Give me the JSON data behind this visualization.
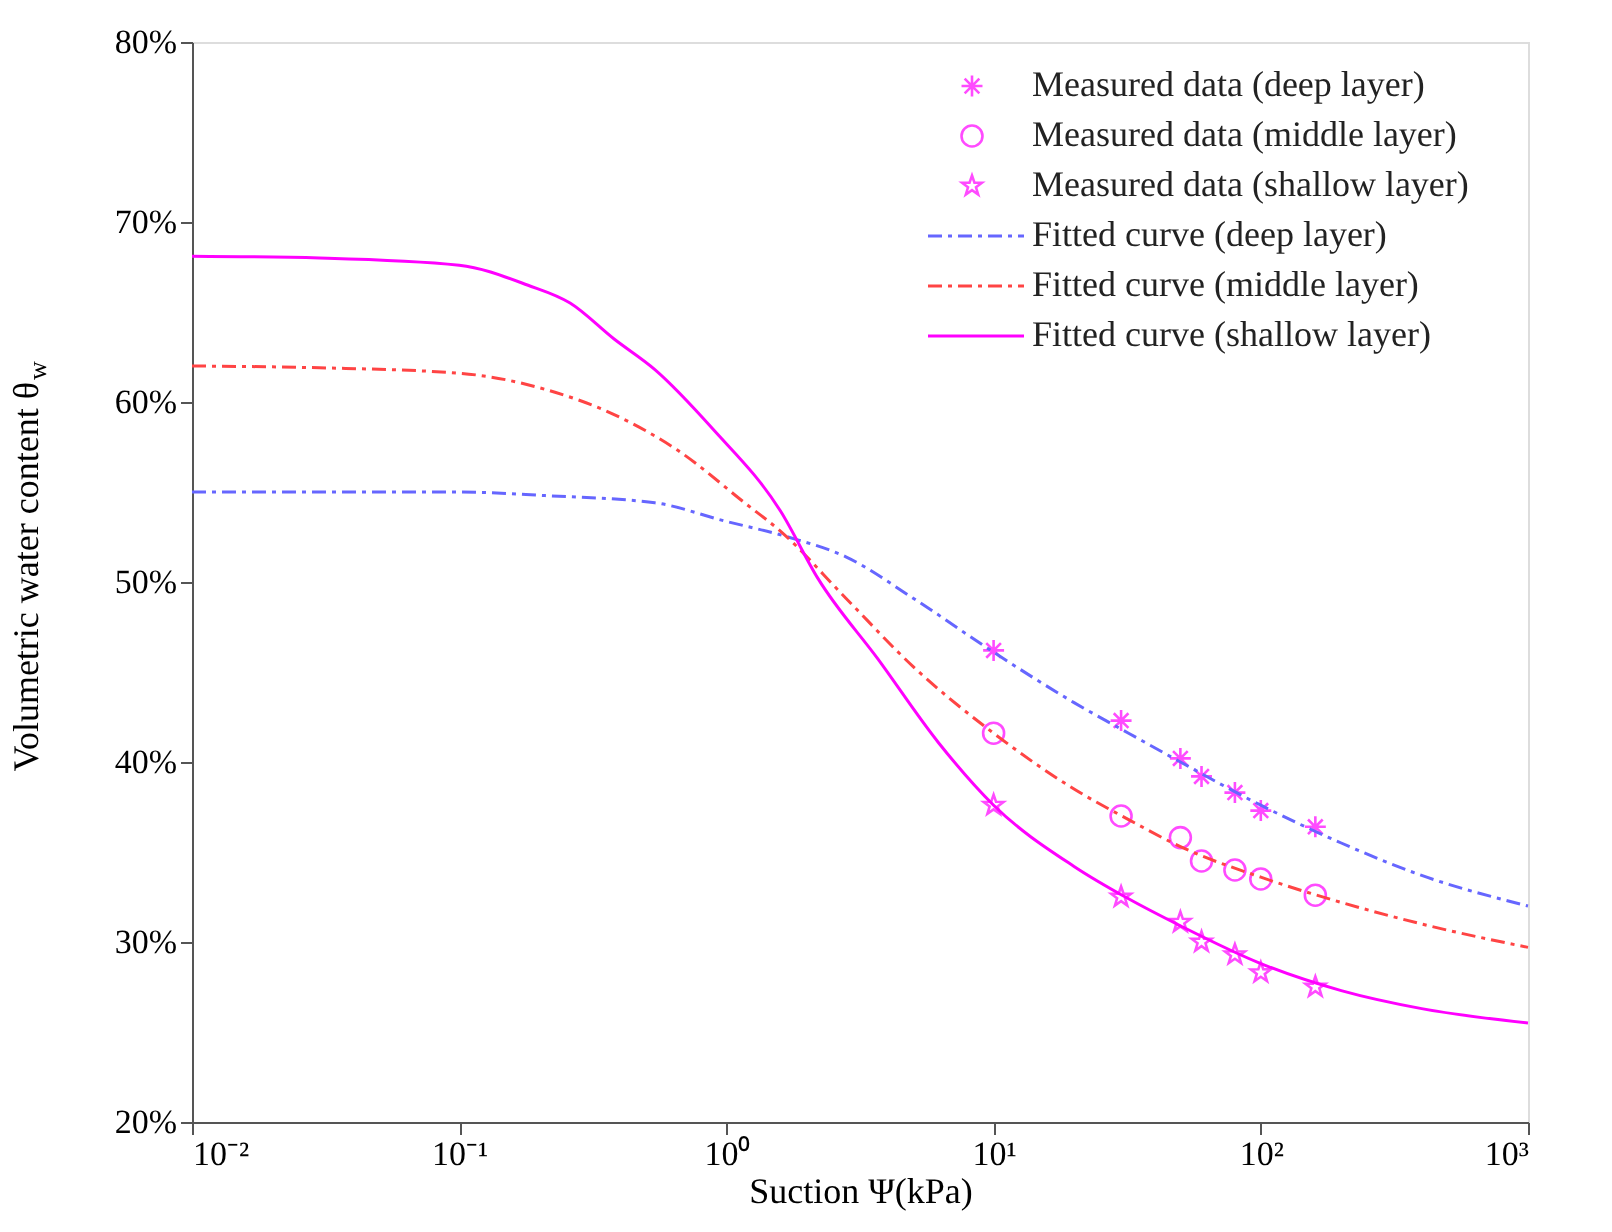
{
  "chart_data": {
    "type": "scatter",
    "xlabel": "Suction  Ψ(kPa)",
    "ylabel": "Volumetric water content θ$_{w}$",
    "log": "x",
    "grid": false,
    "legend": "top right",
    "xlim": [
      0.01,
      1000
    ],
    "xticks": [
      {
        "value": 0.01,
        "label": "10⁻²"
      },
      {
        "value": 0.1,
        "label": "10⁻¹"
      },
      {
        "value": 1,
        "label": "10⁰"
      },
      {
        "value": 10,
        "label": "10¹"
      },
      {
        "value": 100,
        "label": "10²"
      },
      {
        "value": 1000,
        "label": "10³"
      }
    ],
    "ylim": [
      20,
      80
    ],
    "yticks": [
      {
        "value": 20,
        "label": "20%"
      },
      {
        "value": 30,
        "label": "30%"
      },
      {
        "value": 40,
        "label": "40%"
      },
      {
        "value": 50,
        "label": "50%"
      },
      {
        "value": 60,
        "label": "60%"
      },
      {
        "value": 70,
        "label": "70%"
      },
      {
        "value": 80,
        "label": "80%"
      }
    ],
    "series": [
      {
        "name": "Measured data (deep layer)",
        "marker": "cross",
        "color": "#ff00ff",
        "x": [
          10,
          30,
          50,
          60,
          80,
          100,
          160
        ],
        "values": [
          46.2,
          42.3,
          40.2,
          39.2,
          38.3,
          37.3,
          36.4
        ]
      },
      {
        "name": "Measured data (middle layer)",
        "marker": "circle",
        "color": "#ff00ff",
        "x": [
          10,
          30,
          50,
          60,
          80,
          100,
          160
        ],
        "values": [
          41.6,
          37.0,
          35.8,
          34.5,
          34.0,
          33.5,
          32.6
        ]
      },
      {
        "name": "Measured data (shallow layer)",
        "marker": "star",
        "color": "#ff00ff",
        "x": [
          10,
          30,
          50,
          60,
          80,
          100,
          160
        ],
        "values": [
          37.6,
          32.5,
          31.1,
          30.0,
          29.3,
          28.3,
          27.5
        ]
      },
      {
        "name": "Fitted curve (deep layer)",
        "type": "line",
        "line_style": "dashed",
        "color": "#6666ff",
        "x": [
          0.01,
          0.1,
          0.21,
          0.54,
          0.98,
          1.7,
          2.8,
          5,
          10,
          20,
          32,
          50,
          100,
          200,
          400,
          1000
        ],
        "values": [
          55.0,
          55.0,
          54.8,
          54.4,
          53.4,
          52.5,
          51.4,
          49.1,
          46.1,
          43.3,
          41.6,
          40.0,
          37.6,
          35.5,
          33.7,
          32.0
        ]
      },
      {
        "name": "Fitted curve (middle layer)",
        "type": "line",
        "line_style": "dashed",
        "color": "#ff4444",
        "x": [
          0.01,
          0.03,
          0.1,
          0.21,
          0.38,
          0.66,
          1.17,
          1.6,
          2.8,
          5,
          10,
          20,
          32,
          50,
          100,
          200,
          400,
          1000
        ],
        "values": [
          62.0,
          61.9,
          61.6,
          60.7,
          59.3,
          57.3,
          54.4,
          52.8,
          49.1,
          45.3,
          41.6,
          38.5,
          36.8,
          35.3,
          33.6,
          32.2,
          31.0,
          29.7
        ]
      },
      {
        "name": "Fitted curve (shallow layer)",
        "type": "line",
        "line_style": "solid",
        "color": "#ff00ff",
        "x": [
          0.01,
          0.03,
          0.1,
          0.18,
          0.26,
          0.38,
          0.54,
          0.89,
          1.6,
          2.2,
          3.7,
          6.2,
          10,
          20,
          32,
          50,
          100,
          200,
          400,
          1000
        ],
        "values": [
          68.1,
          68.0,
          67.6,
          66.5,
          65.5,
          63.5,
          61.8,
          58.5,
          53.9,
          50.2,
          45.7,
          41.1,
          37.6,
          34.2,
          32.4,
          30.9,
          28.8,
          27.3,
          26.3,
          25.5
        ]
      }
    ]
  }
}
